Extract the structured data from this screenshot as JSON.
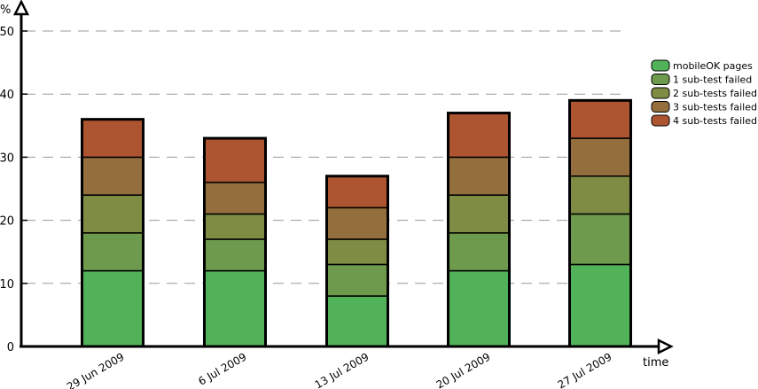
{
  "chart_data": {
    "type": "bar",
    "stacked": true,
    "title": "",
    "xlabel": "time",
    "ylabel": "%",
    "ylim": [
      0,
      50
    ],
    "yticks": [
      0,
      10,
      20,
      30,
      40,
      50
    ],
    "grid": true,
    "legend_position": "right",
    "categories": [
      "29 Jun 2009",
      "6 Jul 2009",
      "13 Jul 2009",
      "20 Jul 2009",
      "27 Jul 2009"
    ],
    "series": [
      {
        "name": "mobileOK pages",
        "color": "#52b25a",
        "values": [
          12,
          12,
          8,
          12,
          13
        ]
      },
      {
        "name": "1 sub-test failed",
        "color": "#6d9a4c",
        "values": [
          6,
          5,
          5,
          6,
          8
        ]
      },
      {
        "name": "2 sub-tests failed",
        "color": "#7f8c43",
        "values": [
          6,
          4,
          4,
          6,
          6
        ]
      },
      {
        "name": "3 sub-tests failed",
        "color": "#946f3d",
        "values": [
          6,
          5,
          5,
          6,
          6
        ]
      },
      {
        "name": "4 sub-tests failed",
        "color": "#ad5430",
        "values": [
          6,
          7,
          5,
          7,
          6
        ]
      }
    ]
  }
}
